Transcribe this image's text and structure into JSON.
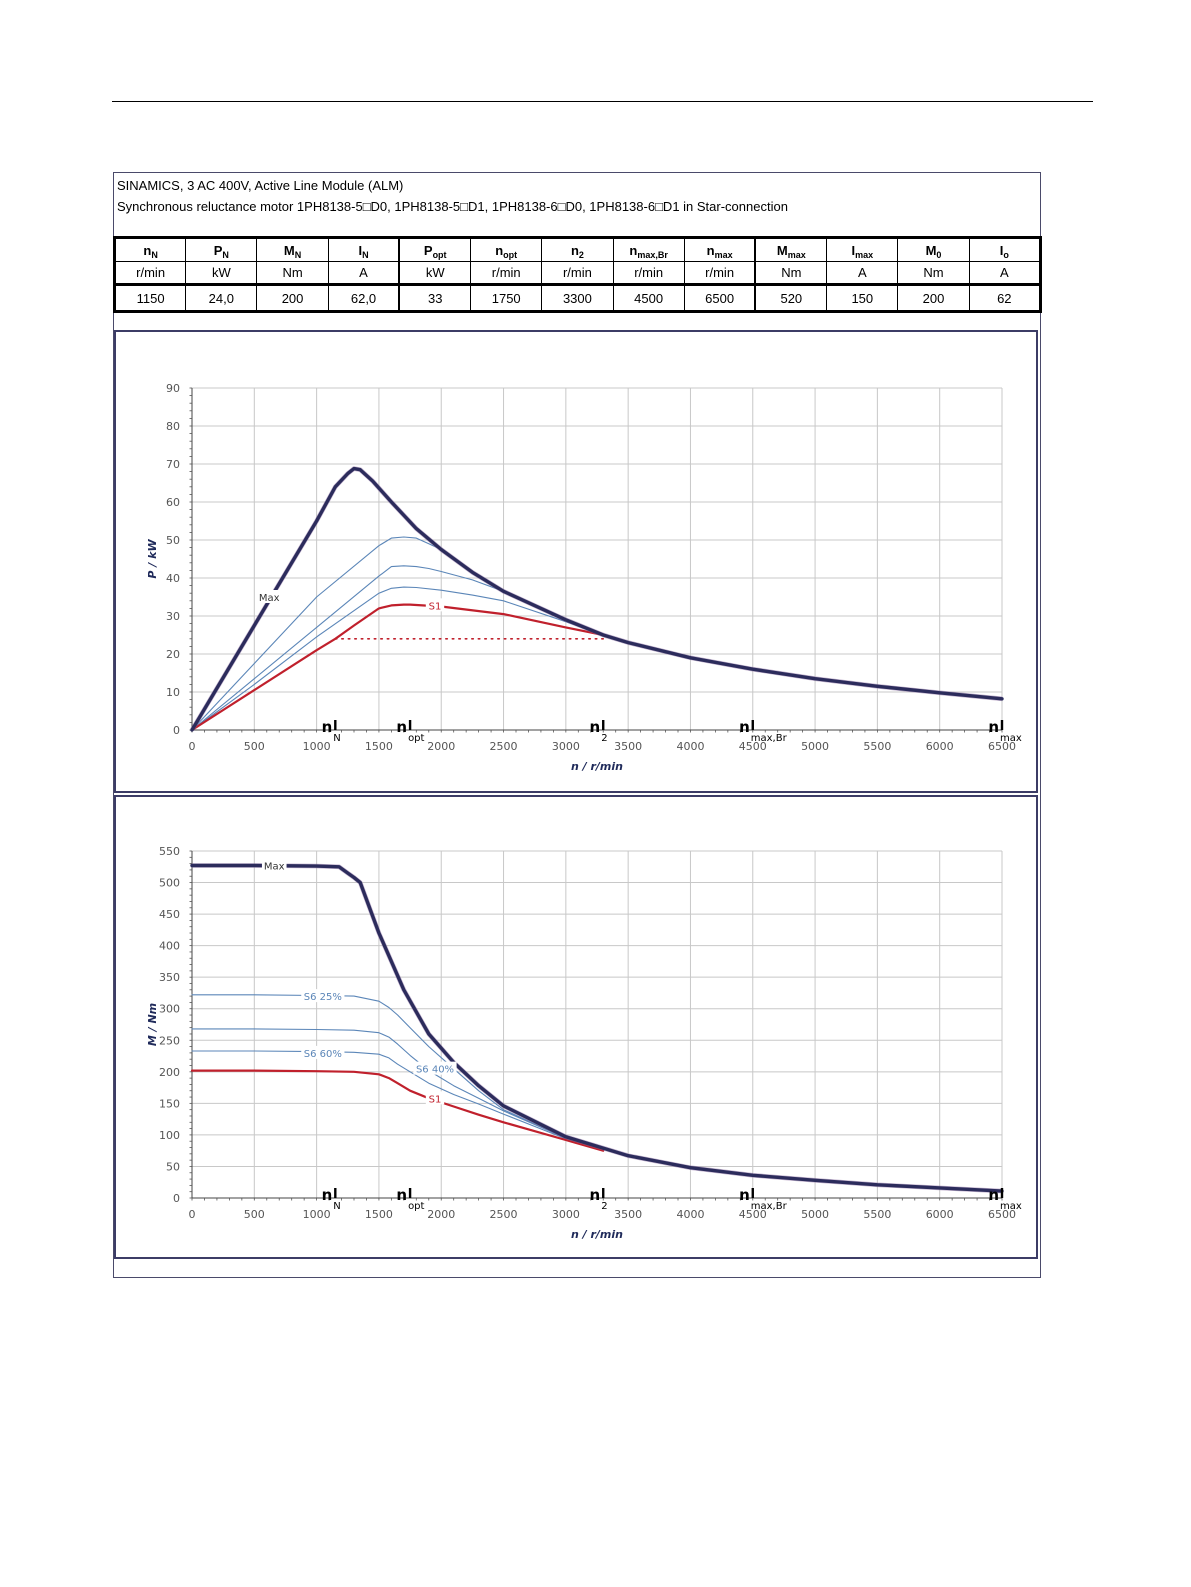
{
  "header": {
    "line1": "SINAMICS, 3 AC 400V, Active Line Module (ALM)",
    "line2": "Synchronous reluctance motor  1PH8138-5□D0,  1PH8138-5□D1,  1PH8138-6□D0,  1PH8138-6□D1   in Star-connection"
  },
  "spec_table": {
    "columns": [
      {
        "sym": "n",
        "sub": "N",
        "unit": "r/min",
        "value": "1150"
      },
      {
        "sym": "P",
        "sub": "N",
        "unit": "kW",
        "value": "24,0"
      },
      {
        "sym": "M",
        "sub": "N",
        "unit": "Nm",
        "value": "200"
      },
      {
        "sym": "I",
        "sub": "N",
        "unit": "A",
        "value": "62,0"
      },
      {
        "sym": "P",
        "sub": "opt",
        "unit": "kW",
        "value": "33"
      },
      {
        "sym": "n",
        "sub": "opt",
        "unit": "r/min",
        "value": "1750"
      },
      {
        "sym": "n",
        "sub": "2",
        "unit": "r/min",
        "value": "3300"
      },
      {
        "sym": "n",
        "sub": "max,Br",
        "unit": "r/min",
        "value": "4500"
      },
      {
        "sym": "n",
        "sub": "max",
        "unit": "r/min",
        "value": "6500"
      },
      {
        "sym": "M",
        "sub": "max",
        "unit": "Nm",
        "value": "520"
      },
      {
        "sym": "I",
        "sub": "max",
        "unit": "A",
        "value": "150"
      },
      {
        "sym": "M",
        "sub": "0",
        "unit": "Nm",
        "value": "200"
      },
      {
        "sym": "I",
        "sub": "o",
        "unit": "A",
        "value": "62"
      }
    ]
  },
  "colors": {
    "max": "#2c2c5c",
    "s1": "#c0202c",
    "s6": "#5b86b8",
    "grid": "#c8c8c8",
    "markers": "#000000"
  },
  "chart_data": [
    {
      "type": "line",
      "title": "",
      "xlabel": "n / r/min",
      "ylabel": "P / kW",
      "xlim": [
        0,
        6500
      ],
      "ylim": [
        0,
        90
      ],
      "xticks": [
        "0",
        "500",
        "1000",
        "1500",
        "2000",
        "2500",
        "3000",
        "3500",
        "4000",
        "4500",
        "5000",
        "5500",
        "6000",
        "6500"
      ],
      "yticks": [
        "0",
        "10",
        "20",
        "30",
        "40",
        "50",
        "60",
        "70",
        "80",
        "90"
      ],
      "grid": true,
      "markers": [
        {
          "main": "n",
          "sub": "N",
          "x": 1150
        },
        {
          "main": "n",
          "sub": "opt",
          "x": 1750
        },
        {
          "main": "n",
          "sub": "2",
          "x": 3300
        },
        {
          "main": "n",
          "sub": "max,Br",
          "x": 4500
        },
        {
          "main": "n",
          "sub": "max",
          "x": 6500
        }
      ],
      "dotted_line": {
        "x": [
          1150,
          3300
        ],
        "y": 24
      },
      "series": [
        {
          "name": "Max",
          "role": "max",
          "label_at": [
            620,
            35
          ],
          "x": [
            0,
            500,
            1000,
            1150,
            1250,
            1300,
            1350,
            1450,
            1600,
            1800,
            2000,
            2250,
            2500,
            3000,
            3300,
            3500,
            4000,
            4500,
            5000,
            5500,
            6000,
            6500
          ],
          "y": [
            0,
            27.5,
            55,
            64,
            67.5,
            68.8,
            68.5,
            65.5,
            60,
            53,
            47.5,
            41.5,
            36.5,
            29,
            25,
            23,
            19,
            16,
            13.5,
            11.5,
            9.8,
            8.2
          ]
        },
        {
          "name": "",
          "role": "s6",
          "x": [
            0,
            500,
            1000,
            1500,
            1600,
            1700,
            1800,
            1900,
            2000,
            2250,
            2500,
            3000,
            3300
          ],
          "y": [
            0,
            13.5,
            27,
            40.5,
            43,
            43.2,
            43,
            42.5,
            41.7,
            39.5,
            36.5,
            29,
            25
          ]
        },
        {
          "name": "",
          "role": "s6",
          "x": [
            0,
            500,
            1000,
            1500,
            1600,
            1700,
            1800,
            1900,
            2000,
            2250,
            2500,
            3000,
            3300
          ],
          "y": [
            0,
            17.5,
            35,
            48.5,
            50.5,
            50.8,
            50.5,
            49,
            47.5,
            41.5,
            36.5,
            29,
            25
          ]
        },
        {
          "name": "",
          "role": "s6",
          "x": [
            0,
            500,
            1000,
            1500,
            1600,
            1700,
            1800,
            2000,
            2250,
            2500,
            3000,
            3300
          ],
          "y": [
            0,
            12,
            24.5,
            36,
            37.3,
            37.6,
            37.5,
            36.8,
            35.5,
            34,
            28.5,
            25
          ]
        },
        {
          "name": "S1",
          "role": "s1",
          "label_at": [
            1950,
            32.8
          ],
          "x": [
            0,
            500,
            1000,
            1150,
            1300,
            1500,
            1600,
            1700,
            1750,
            2000,
            2500,
            3000,
            3300
          ],
          "y": [
            0,
            10.5,
            21,
            24,
            27.5,
            32,
            32.8,
            33,
            33,
            32.5,
            30.5,
            27,
            25
          ]
        }
      ]
    },
    {
      "type": "line",
      "title": "",
      "xlabel": "n / r/min",
      "ylabel": "M / Nm",
      "xlim": [
        0,
        6500
      ],
      "ylim": [
        0,
        550
      ],
      "xticks": [
        "0",
        "500",
        "1000",
        "1500",
        "2000",
        "2500",
        "3000",
        "3500",
        "4000",
        "4500",
        "5000",
        "5500",
        "6000",
        "6500"
      ],
      "yticks": [
        "0",
        "50",
        "100",
        "150",
        "200",
        "250",
        "300",
        "350",
        "400",
        "450",
        "500",
        "550"
      ],
      "grid": true,
      "markers": [
        {
          "main": "n",
          "sub": "N",
          "x": 1150
        },
        {
          "main": "n",
          "sub": "opt",
          "x": 1750
        },
        {
          "main": "n",
          "sub": "2",
          "x": 3300
        },
        {
          "main": "n",
          "sub": "max,Br",
          "x": 4500
        },
        {
          "main": "n",
          "sub": "max",
          "x": 6500
        }
      ],
      "series": [
        {
          "name": "Max",
          "role": "max",
          "label_at": [
            660,
            527
          ],
          "x": [
            0,
            500,
            1000,
            1180,
            1250,
            1300,
            1350,
            1500,
            1700,
            1900,
            2100,
            2300,
            2500,
            3000,
            3500,
            4000,
            4500,
            5000,
            5500,
            6000,
            6500
          ],
          "y": [
            527,
            527,
            526,
            525,
            515,
            508,
            500,
            420,
            330,
            260,
            215,
            178,
            146,
            97,
            67,
            48,
            36,
            28,
            21,
            16,
            11
          ]
        },
        {
          "name": "S6 25%",
          "role": "s6",
          "label_at": [
            1050,
            320
          ],
          "x": [
            0,
            500,
            1000,
            1300,
            1500,
            1580,
            1650,
            1750,
            1900,
            2100,
            2300,
            2500,
            3000,
            3300
          ],
          "y": [
            322,
            322,
            321,
            320,
            312,
            302,
            290,
            270,
            240,
            205,
            170,
            140,
            95,
            75
          ]
        },
        {
          "name": "",
          "role": "s6",
          "x": [
            0,
            500,
            1000,
            1300,
            1500,
            1580,
            1650,
            1750,
            1900,
            2100,
            2300,
            2500,
            3000,
            3300
          ],
          "y": [
            268,
            268,
            267,
            266,
            262,
            255,
            244,
            226,
            202,
            178,
            158,
            138,
            95,
            75
          ]
        },
        {
          "name": "S6 60%",
          "role": "s6",
          "label_at": [
            1050,
            230
          ],
          "x": [
            0,
            500,
            1000,
            1300,
            1500,
            1580,
            1650,
            1750,
            1900,
            2100,
            2300,
            2500,
            3000,
            3300
          ],
          "y": [
            233,
            233,
            232,
            231,
            228,
            222,
            212,
            200,
            182,
            164,
            149,
            133,
            94,
            75
          ]
        },
        {
          "name": "S6 40%",
          "role": "s6",
          "label_at": [
            1950,
            205
          ],
          "label_color": "s6"
        },
        {
          "name": "S1",
          "role": "s1",
          "label_at": [
            1950,
            158
          ],
          "x": [
            0,
            500,
            1000,
            1300,
            1500,
            1580,
            1650,
            1750,
            1900,
            2100,
            2300,
            2500,
            3000,
            3300
          ],
          "y": [
            202,
            202,
            201,
            200,
            196,
            190,
            182,
            170,
            158,
            145,
            132,
            120,
            92,
            75
          ]
        }
      ]
    }
  ]
}
